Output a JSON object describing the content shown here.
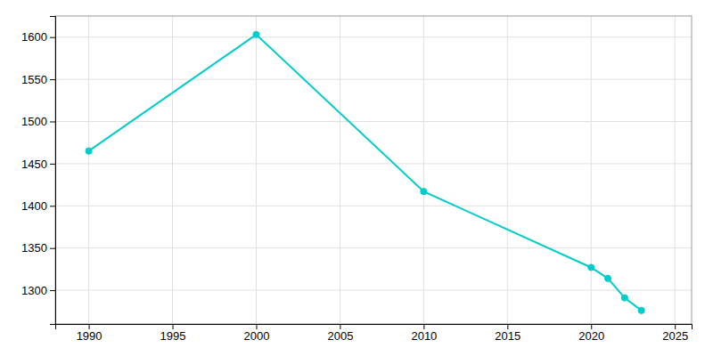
{
  "chart_data": {
    "type": "line",
    "x": [
      1990,
      2000,
      2010,
      2020,
      2021,
      2022,
      2023
    ],
    "values": [
      1465,
      1603,
      1417,
      1327,
      1314,
      1291,
      1276
    ],
    "color": "#00CCCC",
    "marker": "circle",
    "xlim": [
      1988,
      2026
    ],
    "ylim": [
      1260,
      1625
    ],
    "xticks": [
      1990,
      1995,
      2000,
      2005,
      2010,
      2015,
      2020,
      2025
    ],
    "yticks": [
      1300,
      1350,
      1400,
      1450,
      1500,
      1550,
      1600
    ],
    "grid": true
  }
}
